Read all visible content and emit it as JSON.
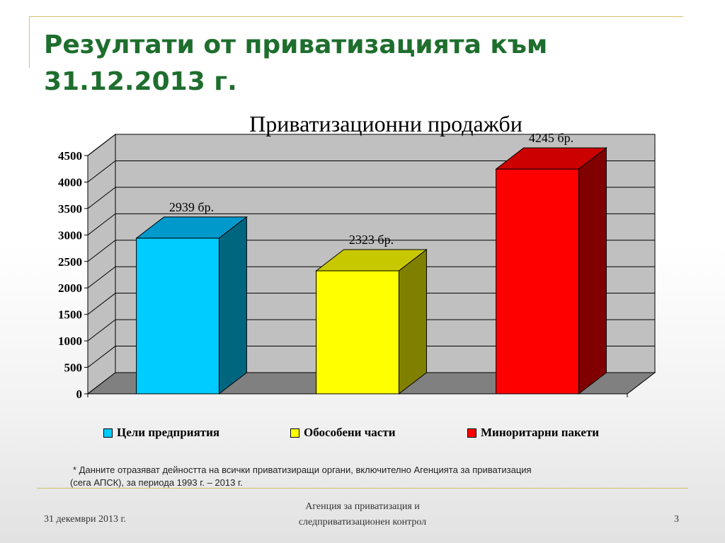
{
  "slide": {
    "title_line1": "Резултати от приватизацията към",
    "title_line2": "31.12.2013 г."
  },
  "chart_data": {
    "type": "bar",
    "title": "Приватизационни продажби",
    "categories": [
      "Цели предприятия",
      "Обособени части",
      "Миноритарни пакети"
    ],
    "values": [
      2939,
      2323,
      4245
    ],
    "data_labels": [
      "2939 бр.",
      "2323 бр.",
      "4245 бр."
    ],
    "ylim": [
      0,
      4500
    ],
    "yticks": [
      0,
      500,
      1000,
      1500,
      2000,
      2500,
      3000,
      3500,
      4000,
      4500
    ],
    "grid": true,
    "legend_position": "bottom",
    "style": "3d-bar",
    "colors": [
      {
        "front": "#00ccff",
        "top": "#0099cc",
        "side": "#006680"
      },
      {
        "front": "#ffff00",
        "top": "#c8c800",
        "side": "#808000"
      },
      {
        "front": "#ff0000",
        "top": "#cc0000",
        "side": "#800000"
      }
    ]
  },
  "footnote": {
    "line1": "* Данните отразяват дейността на всички приватизиращи органи, включително Агенцията за приватизация",
    "line2": "(сега АПСК), за  периода 1993 г. – 2013 г."
  },
  "footer": {
    "date": "31 декември 2013 г.",
    "agency_line1": "Агенция за приватизация и",
    "agency_line2": "следприватизационен контрол",
    "page": "3"
  },
  "theme": {
    "title_color": "#1e6e2e",
    "rule_color": "#d4bf6a",
    "wall_color": "#c0c0c0",
    "floor_color": "#808080"
  }
}
